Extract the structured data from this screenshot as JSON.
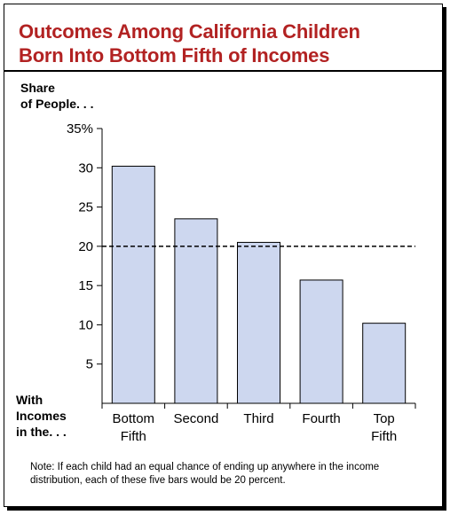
{
  "title_lines": [
    "Outcomes Among California Children",
    "Born Into Bottom Fifth of Incomes"
  ],
  "chart_data": {
    "type": "bar",
    "title": "Outcomes Among California Children Born Into Bottom Fifth of Incomes",
    "ylabel_lines": [
      "Share",
      "of People. . ."
    ],
    "xlabel_lines": [
      "With",
      "Incomes",
      "in the. . ."
    ],
    "categories": [
      [
        "Bottom",
        "Fifth"
      ],
      [
        "Second"
      ],
      [
        "Third"
      ],
      [
        "Fourth"
      ],
      [
        "Top",
        "Fifth"
      ]
    ],
    "values": [
      30.2,
      23.5,
      20.5,
      15.7,
      10.2
    ],
    "ylim": [
      0,
      35
    ],
    "yticks": [
      5,
      10,
      15,
      20,
      25,
      30,
      35
    ],
    "ytick_labels": [
      "5",
      "10",
      "15",
      "20",
      "25",
      "30",
      "35%"
    ],
    "reference_line": 20,
    "bar_color": "#cdd7ef",
    "grid": false,
    "legend": "none"
  },
  "note": "Note: If each child had an equal chance of ending up anywhere in the income distribution, each of these five bars would be 20 percent."
}
